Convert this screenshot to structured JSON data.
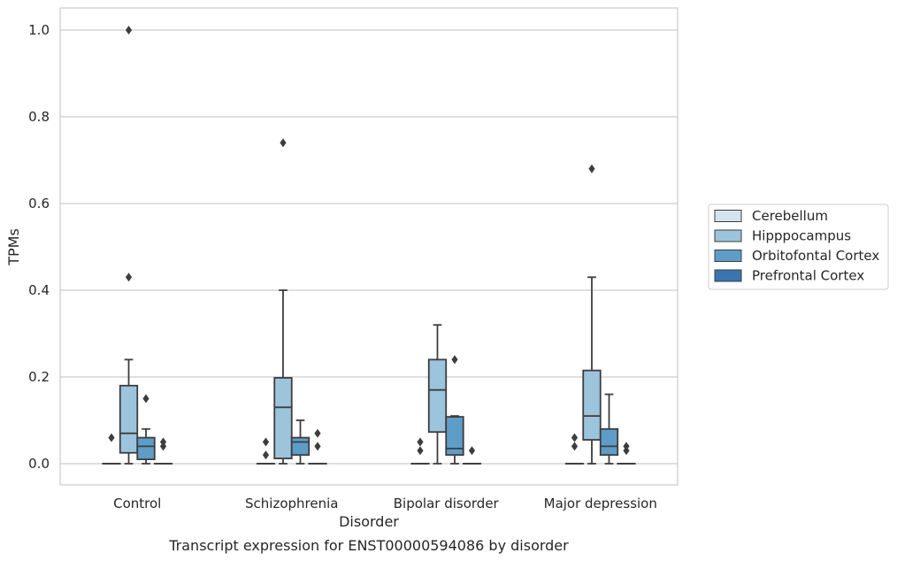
{
  "chart_data": {
    "type": "box",
    "title": "Transcript expression for ENST00000594086 by disorder",
    "xlabel": "Disorder",
    "ylabel": "TPMs",
    "ylim": [
      -0.05,
      1.05
    ],
    "yticks": [
      "0.0",
      "0.2",
      "0.4",
      "0.6",
      "0.8",
      "1.0"
    ],
    "grid": true,
    "legend_position": "right",
    "categories": [
      "Control",
      "Schizophrenia",
      "Bipolar disorder",
      "Major depression"
    ],
    "series": [
      {
        "name": "Cerebellum",
        "color": "#d4e3f0",
        "boxes": [
          {
            "q1": 0,
            "median": 0,
            "q3": 0,
            "whisker_low": 0,
            "whisker_high": 0,
            "outliers": [
              0.06
            ]
          },
          {
            "q1": 0,
            "median": 0,
            "q3": 0,
            "whisker_low": 0,
            "whisker_high": 0,
            "outliers": [
              0.02,
              0.05
            ]
          },
          {
            "q1": 0,
            "median": 0,
            "q3": 0,
            "whisker_low": 0,
            "whisker_high": 0,
            "outliers": [
              0.03,
              0.05
            ]
          },
          {
            "q1": 0,
            "median": 0,
            "q3": 0,
            "whisker_low": 0,
            "whisker_high": 0,
            "outliers": [
              0.04,
              0.06
            ]
          }
        ]
      },
      {
        "name": "Hipppocampus",
        "color": "#9dc4dd",
        "boxes": [
          {
            "q1": 0.025,
            "median": 0.07,
            "q3": 0.18,
            "whisker_low": 0,
            "whisker_high": 0.24,
            "outliers": [
              0.43,
              1.0
            ]
          },
          {
            "q1": 0.012,
            "median": 0.13,
            "q3": 0.198,
            "whisker_low": 0,
            "whisker_high": 0.4,
            "outliers": [
              0.74
            ]
          },
          {
            "q1": 0.073,
            "median": 0.17,
            "q3": 0.24,
            "whisker_low": 0,
            "whisker_high": 0.32,
            "outliers": []
          },
          {
            "q1": 0.055,
            "median": 0.11,
            "q3": 0.215,
            "whisker_low": 0,
            "whisker_high": 0.43,
            "outliers": [
              0.68
            ]
          }
        ]
      },
      {
        "name": "Orbitofontal Cortex",
        "color": "#5e9dc8",
        "boxes": [
          {
            "q1": 0.01,
            "median": 0.04,
            "q3": 0.06,
            "whisker_low": 0,
            "whisker_high": 0.08,
            "outliers": [
              0.15
            ]
          },
          {
            "q1": 0.02,
            "median": 0.05,
            "q3": 0.06,
            "whisker_low": 0,
            "whisker_high": 0.1,
            "outliers": []
          },
          {
            "q1": 0.02,
            "median": 0.035,
            "q3": 0.108,
            "whisker_low": 0,
            "whisker_high": 0.11,
            "outliers": [
              0.24
            ]
          },
          {
            "q1": 0.02,
            "median": 0.04,
            "q3": 0.08,
            "whisker_low": 0,
            "whisker_high": 0.16,
            "outliers": []
          }
        ]
      },
      {
        "name": "Prefrontal Cortex",
        "color": "#3b75b0",
        "boxes": [
          {
            "q1": 0,
            "median": 0,
            "q3": 0,
            "whisker_low": 0,
            "whisker_high": 0,
            "outliers": [
              0.04,
              0.05
            ]
          },
          {
            "q1": 0,
            "median": 0,
            "q3": 0,
            "whisker_low": 0,
            "whisker_high": 0,
            "outliers": [
              0.04,
              0.07
            ]
          },
          {
            "q1": 0,
            "median": 0,
            "q3": 0,
            "whisker_low": 0,
            "whisker_high": 0,
            "outliers": [
              0.03
            ]
          },
          {
            "q1": 0,
            "median": 0,
            "q3": 0,
            "whisker_low": 0,
            "whisker_high": 0,
            "outliers": [
              0.03,
              0.04
            ]
          }
        ]
      }
    ]
  }
}
